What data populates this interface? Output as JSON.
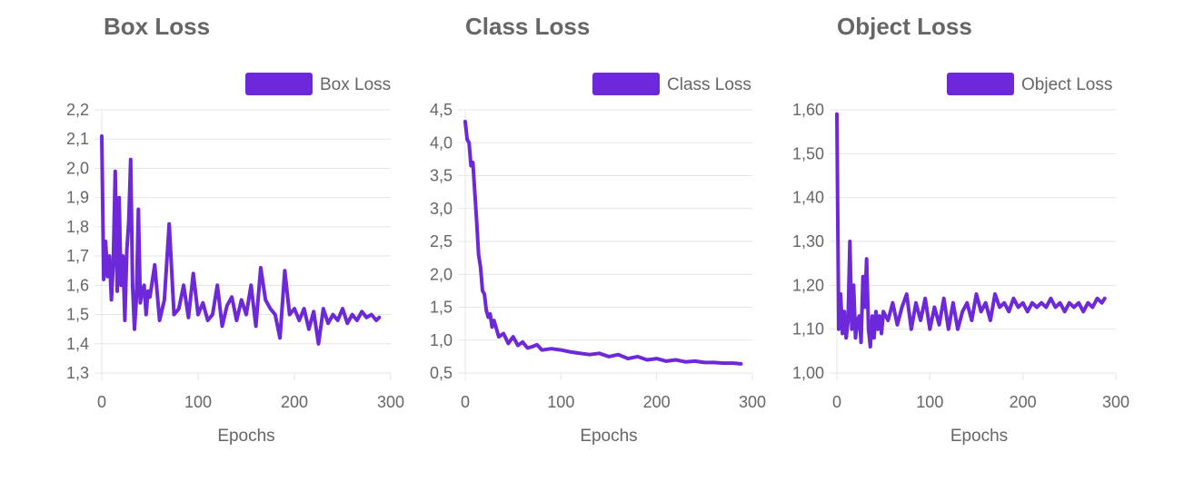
{
  "colors": {
    "series": "#6d28d9",
    "grid": "#e5e5e5",
    "text": "#666666"
  },
  "chart_data": [
    {
      "type": "line",
      "title": "Box Loss",
      "xlabel": "Epochs",
      "ylabel": "",
      "xlim": [
        0,
        300
      ],
      "ylim": [
        1.3,
        2.2
      ],
      "xticks": [
        0,
        100,
        200,
        300
      ],
      "yticks": [
        "1,3",
        "1,4",
        "1,5",
        "1,6",
        "1,7",
        "1,8",
        "1,9",
        "2,0",
        "2,1",
        "2,2"
      ],
      "legend": "top-right",
      "grid": true,
      "series": [
        {
          "name": "Box Loss",
          "x": [
            0,
            2,
            4,
            6,
            8,
            10,
            12,
            14,
            16,
            18,
            20,
            22,
            24,
            26,
            28,
            30,
            32,
            34,
            36,
            38,
            40,
            42,
            44,
            46,
            48,
            50,
            55,
            60,
            65,
            70,
            75,
            80,
            85,
            90,
            95,
            100,
            105,
            110,
            115,
            120,
            125,
            130,
            135,
            140,
            145,
            150,
            155,
            160,
            165,
            170,
            175,
            180,
            185,
            190,
            195,
            200,
            205,
            210,
            215,
            220,
            225,
            230,
            235,
            240,
            245,
            250,
            255,
            260,
            265,
            270,
            275,
            280,
            285,
            288
          ],
          "y": [
            2.11,
            1.62,
            1.75,
            1.63,
            1.7,
            1.55,
            1.68,
            1.99,
            1.58,
            1.9,
            1.6,
            1.7,
            1.48,
            1.72,
            1.82,
            2.03,
            1.6,
            1.45,
            1.56,
            1.86,
            1.54,
            1.58,
            1.6,
            1.5,
            1.58,
            1.56,
            1.67,
            1.48,
            1.55,
            1.81,
            1.5,
            1.52,
            1.6,
            1.49,
            1.64,
            1.5,
            1.54,
            1.48,
            1.5,
            1.6,
            1.46,
            1.53,
            1.56,
            1.48,
            1.55,
            1.5,
            1.6,
            1.46,
            1.66,
            1.55,
            1.52,
            1.5,
            1.42,
            1.65,
            1.5,
            1.52,
            1.48,
            1.52,
            1.45,
            1.51,
            1.4,
            1.52,
            1.47,
            1.5,
            1.48,
            1.52,
            1.47,
            1.5,
            1.48,
            1.51,
            1.49,
            1.5,
            1.48,
            1.49
          ]
        }
      ]
    },
    {
      "type": "line",
      "title": "Class Loss",
      "xlabel": "Epochs",
      "ylabel": "",
      "xlim": [
        0,
        300
      ],
      "ylim": [
        0.5,
        4.5
      ],
      "xticks": [
        0,
        100,
        200,
        300
      ],
      "yticks": [
        "0,5",
        "1,0",
        "1,5",
        "2,0",
        "2,5",
        "3,0",
        "3,5",
        "4,0",
        "4,5"
      ],
      "legend": "top-right",
      "grid": true,
      "series": [
        {
          "name": "Class Loss",
          "x": [
            0,
            2,
            4,
            6,
            8,
            10,
            12,
            14,
            16,
            18,
            20,
            22,
            24,
            26,
            28,
            30,
            35,
            40,
            45,
            50,
            55,
            60,
            65,
            70,
            75,
            80,
            90,
            100,
            110,
            120,
            130,
            140,
            150,
            160,
            170,
            180,
            190,
            200,
            210,
            220,
            230,
            240,
            250,
            260,
            270,
            280,
            288
          ],
          "y": [
            4.32,
            4.05,
            4.0,
            3.65,
            3.7,
            3.25,
            2.8,
            2.3,
            2.1,
            1.75,
            1.7,
            1.45,
            1.35,
            1.4,
            1.2,
            1.3,
            1.05,
            1.1,
            0.95,
            1.05,
            0.92,
            0.97,
            0.88,
            0.9,
            0.93,
            0.85,
            0.87,
            0.85,
            0.82,
            0.8,
            0.78,
            0.8,
            0.75,
            0.78,
            0.72,
            0.75,
            0.7,
            0.72,
            0.68,
            0.7,
            0.67,
            0.68,
            0.66,
            0.66,
            0.65,
            0.65,
            0.64
          ]
        }
      ]
    },
    {
      "type": "line",
      "title": "Object Loss",
      "xlabel": "Epochs",
      "ylabel": "",
      "xlim": [
        0,
        300
      ],
      "ylim": [
        1.0,
        1.6
      ],
      "xticks": [
        0,
        100,
        200,
        300
      ],
      "yticks": [
        "1,00",
        "1,10",
        "1,20",
        "1,30",
        "1,40",
        "1,50",
        "1,60"
      ],
      "legend": "top-right",
      "grid": true,
      "series": [
        {
          "name": "Object Loss",
          "x": [
            0,
            2,
            4,
            6,
            8,
            10,
            12,
            14,
            16,
            18,
            20,
            22,
            24,
            26,
            28,
            30,
            32,
            34,
            36,
            38,
            40,
            42,
            44,
            46,
            48,
            50,
            55,
            60,
            65,
            70,
            75,
            80,
            85,
            90,
            95,
            100,
            105,
            110,
            115,
            120,
            125,
            130,
            135,
            140,
            145,
            150,
            155,
            160,
            165,
            170,
            175,
            180,
            185,
            190,
            195,
            200,
            205,
            210,
            215,
            220,
            225,
            230,
            235,
            240,
            245,
            250,
            255,
            260,
            265,
            270,
            275,
            280,
            285,
            288
          ],
          "y": [
            1.59,
            1.1,
            1.18,
            1.09,
            1.14,
            1.08,
            1.12,
            1.3,
            1.1,
            1.2,
            1.08,
            1.12,
            1.13,
            1.07,
            1.22,
            1.15,
            1.26,
            1.1,
            1.06,
            1.13,
            1.08,
            1.14,
            1.1,
            1.13,
            1.09,
            1.14,
            1.12,
            1.16,
            1.11,
            1.15,
            1.18,
            1.1,
            1.16,
            1.12,
            1.17,
            1.1,
            1.15,
            1.11,
            1.17,
            1.1,
            1.16,
            1.1,
            1.14,
            1.16,
            1.12,
            1.18,
            1.14,
            1.16,
            1.12,
            1.18,
            1.15,
            1.16,
            1.14,
            1.17,
            1.15,
            1.16,
            1.14,
            1.16,
            1.15,
            1.16,
            1.15,
            1.17,
            1.15,
            1.16,
            1.14,
            1.16,
            1.15,
            1.16,
            1.14,
            1.16,
            1.15,
            1.17,
            1.16,
            1.17
          ]
        }
      ]
    }
  ]
}
